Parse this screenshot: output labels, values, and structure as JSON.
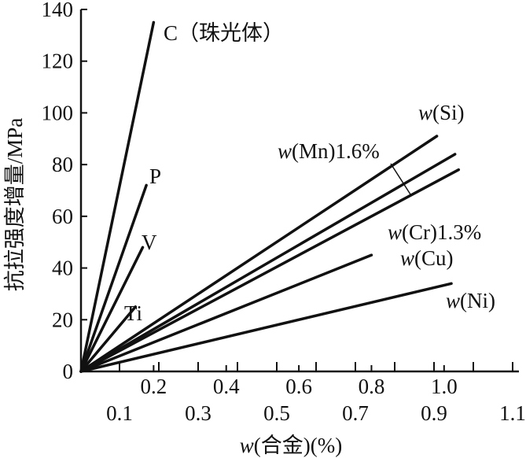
{
  "chart_data": {
    "type": "line",
    "title": "",
    "xlabel": "w(合金)(%)",
    "ylabel": "抗拉强度增量/MPa",
    "xlim": [
      0,
      1.1
    ],
    "ylim": [
      0,
      140
    ],
    "grid": false,
    "y_ticks": [
      0,
      20,
      40,
      60,
      80,
      100,
      120,
      140
    ],
    "x_ticks_upper": [
      0.2,
      0.4,
      0.6,
      0.8,
      1.0
    ],
    "x_ticks_lower": [
      0.1,
      0.2,
      0.3,
      0.4,
      0.5,
      0.6,
      0.7,
      0.8,
      0.9,
      1.0,
      1.1
    ],
    "x_tick_labels_upper": [
      "0.2",
      "0.4",
      "0.6",
      "0.8",
      "1.0"
    ],
    "x_tick_labels_lower": [
      "0.1",
      "0.3",
      "0.5",
      "0.7",
      "0.9",
      "1.1"
    ],
    "y_tick_labels": [
      "0",
      "20",
      "40",
      "60",
      "80",
      "100",
      "120",
      "140"
    ],
    "series": [
      {
        "name": "C（珠光体）",
        "x": [
          0,
          0.2
        ],
        "y": [
          0,
          135
        ]
      },
      {
        "name": "P",
        "x": [
          0,
          0.18
        ],
        "y": [
          0,
          72
        ]
      },
      {
        "name": "V",
        "x": [
          0,
          0.17
        ],
        "y": [
          0,
          48
        ]
      },
      {
        "name": "Ti",
        "x": [
          0,
          0.15
        ],
        "y": [
          0,
          25
        ]
      },
      {
        "name": "w(Si)",
        "x": [
          0,
          0.98
        ],
        "y": [
          0,
          91
        ]
      },
      {
        "name": "w(Mn)1.6%",
        "x": [
          0,
          1.03
        ],
        "y": [
          0,
          84
        ]
      },
      {
        "name": "w(Cr)1.3%",
        "x": [
          0,
          1.04
        ],
        "y": [
          0,
          78
        ]
      },
      {
        "name": "w(Cu)",
        "x": [
          0,
          0.8
        ],
        "y": [
          0,
          45
        ]
      },
      {
        "name": "w(Ni)",
        "x": [
          0,
          1.02
        ],
        "y": [
          0,
          34
        ]
      }
    ]
  }
}
